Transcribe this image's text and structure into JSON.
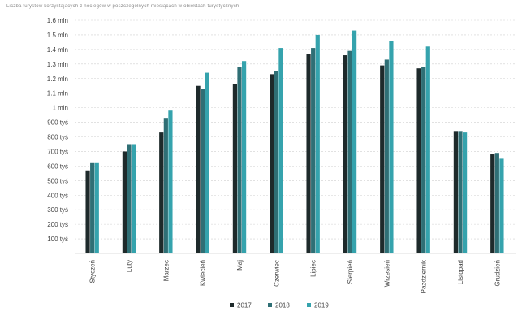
{
  "chart_data": {
    "type": "bar",
    "subtitle": "Liczba turystów korzystających z noclegów w poszczególnych miesiącach w obiektach turystycznych",
    "categories": [
      "Styczeń",
      "Luty",
      "Marzec",
      "Kwiecień",
      "Maj",
      "Czerwiec",
      "Lipiec",
      "Sierpień",
      "Wrzesień",
      "Październik",
      "Listopad",
      "Grudzień"
    ],
    "series": [
      {
        "name": "2017",
        "color": "#1e2a2b",
        "values": [
          570000,
          700000,
          830000,
          1150000,
          1160000,
          1230000,
          1370000,
          1360000,
          1290000,
          1270000,
          840000,
          680000
        ]
      },
      {
        "name": "2018",
        "color": "#2f6f75",
        "values": [
          620000,
          750000,
          930000,
          1130000,
          1280000,
          1250000,
          1410000,
          1390000,
          1330000,
          1280000,
          840000,
          690000
        ]
      },
      {
        "name": "2019",
        "color": "#35a3ad",
        "values": [
          620000,
          750000,
          980000,
          1240000,
          1320000,
          1410000,
          1500000,
          1530000,
          1460000,
          1420000,
          830000,
          650000
        ]
      }
    ],
    "ylim": [
      0,
      1600000
    ],
    "yticks": [
      {
        "value": 100000,
        "label": "100 tyś"
      },
      {
        "value": 200000,
        "label": "200 tyś"
      },
      {
        "value": 300000,
        "label": "300 tyś"
      },
      {
        "value": 400000,
        "label": "400 tyś"
      },
      {
        "value": 500000,
        "label": "500 tyś"
      },
      {
        "value": 600000,
        "label": "600 tyś"
      },
      {
        "value": 700000,
        "label": "700 tyś"
      },
      {
        "value": 800000,
        "label": "800 tyś"
      },
      {
        "value": 900000,
        "label": "900 tyś"
      },
      {
        "value": 1000000,
        "label": "1 mln"
      },
      {
        "value": 1100000,
        "label": "1.1 mln"
      },
      {
        "value": 1200000,
        "label": "1.2 mln"
      },
      {
        "value": 1300000,
        "label": "1.3 mln"
      },
      {
        "value": 1400000,
        "label": "1.4 mln"
      },
      {
        "value": 1500000,
        "label": "1.5 mln"
      },
      {
        "value": 1600000,
        "label": "1.6 mln"
      }
    ],
    "grid": true,
    "legend": "bottom-center"
  }
}
